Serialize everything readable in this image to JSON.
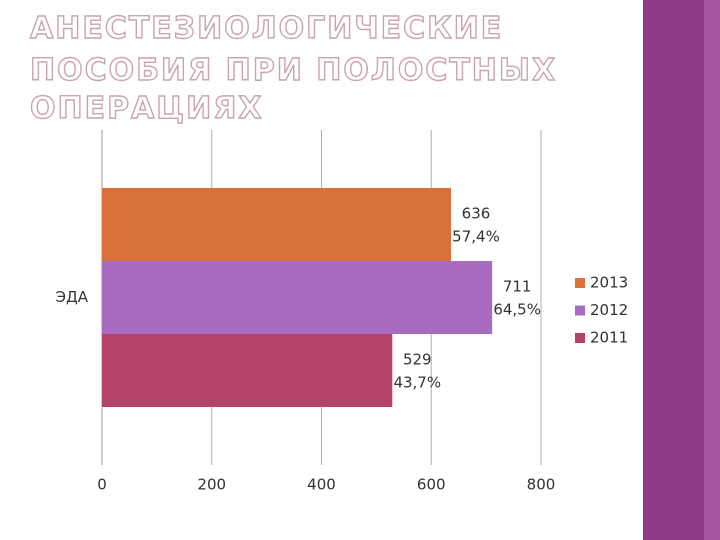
{
  "chart_data": {
    "type": "bar",
    "orientation": "horizontal",
    "title": [
      "АНЕСТЕЗИОЛОГИЧЕСКИЕ",
      "ПОСОБИЯ ПРИ ПОЛОСТНЫХ",
      "ОПЕРАЦИЯХ"
    ],
    "categories": [
      "ЭДА"
    ],
    "series": [
      {
        "name": "2013",
        "color": "#d9713a",
        "values": [
          636
        ],
        "value_labels": [
          [
            "636",
            "57,4%"
          ]
        ]
      },
      {
        "name": "2012",
        "color": "#a96bbf",
        "values": [
          711
        ],
        "value_labels": [
          [
            "711",
            "64,5%"
          ]
        ]
      },
      {
        "name": "2011",
        "color": "#b5426a",
        "values": [
          529
        ],
        "value_labels": [
          [
            "529",
            "43,7%"
          ]
        ]
      }
    ],
    "xlim": [
      0,
      800
    ],
    "xticks": [
      0,
      200,
      400,
      600,
      800
    ],
    "grid": true,
    "legend": "right"
  }
}
